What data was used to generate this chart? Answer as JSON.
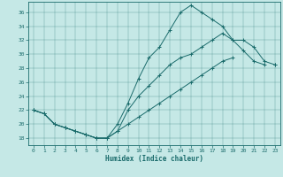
{
  "xlabel": "Humidex (Indice chaleur)",
  "xlim": [
    -0.5,
    23.5
  ],
  "ylim": [
    17,
    37.5
  ],
  "yticks": [
    18,
    20,
    22,
    24,
    26,
    28,
    30,
    32,
    34,
    36
  ],
  "xticks": [
    0,
    1,
    2,
    3,
    4,
    5,
    6,
    7,
    8,
    9,
    10,
    11,
    12,
    13,
    14,
    15,
    16,
    17,
    18,
    19,
    20,
    21,
    22,
    23
  ],
  "bg_color": "#c5e8e6",
  "line_color": "#1a6b6b",
  "line1_x": [
    0,
    1,
    2,
    3,
    4,
    5,
    6,
    7,
    8,
    9,
    10,
    11,
    12,
    13,
    14,
    15,
    16,
    17,
    18,
    19,
    20,
    21,
    22
  ],
  "line1_y": [
    22,
    21.5,
    20,
    19.5,
    19,
    18.5,
    18,
    18,
    20,
    23,
    26.5,
    29.5,
    31,
    33.5,
    36,
    37,
    36,
    35,
    34,
    32,
    30.5,
    29,
    28.5
  ],
  "line2_x": [
    0,
    1,
    2,
    3,
    4,
    5,
    6,
    7,
    8,
    9,
    10,
    11,
    12,
    13,
    14,
    15,
    16,
    17,
    18,
    19,
    20,
    21,
    22,
    23
  ],
  "line2_y": [
    22,
    21.5,
    20,
    19.5,
    19,
    18.5,
    18,
    18,
    19,
    20,
    21,
    22,
    23,
    24,
    25,
    26,
    27,
    28,
    29,
    29.5,
    null,
    null,
    null,
    28.5
  ],
  "line3_x": [
    0,
    1,
    2,
    3,
    4,
    5,
    6,
    7,
    8,
    9,
    10,
    11,
    12,
    13,
    14,
    15,
    16,
    17,
    18,
    19,
    20,
    21,
    22,
    23
  ],
  "line3_y": [
    22,
    21.5,
    20,
    19.5,
    19,
    18.5,
    18,
    18,
    19,
    22,
    24,
    25.5,
    27,
    28.5,
    29.5,
    30,
    31,
    32,
    33,
    32,
    32,
    31,
    29,
    28.5
  ]
}
